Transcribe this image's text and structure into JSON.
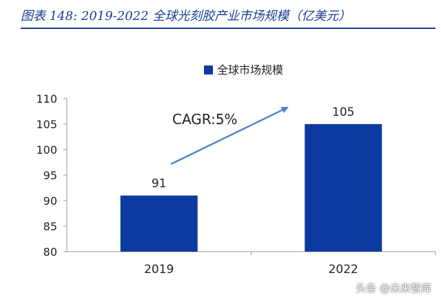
{
  "header": {
    "figure_title": "图表 148:  2019-2022 全球光刻胶产业市场规模（亿美元）"
  },
  "colors": {
    "title": "#1a3f8f",
    "bar": "#0d3aa0",
    "arrow": "#4f86c6",
    "axis": "#9a9a9a",
    "text": "#222222"
  },
  "chart_data": {
    "type": "bar",
    "categories": [
      "2019",
      "2022"
    ],
    "series": [
      {
        "name": "全球市场规模",
        "values": [
          91,
          105
        ]
      }
    ],
    "data_labels": [
      "91",
      "105"
    ],
    "ylim": [
      80,
      110
    ],
    "yticks": [
      80,
      85,
      90,
      95,
      100,
      105,
      110
    ],
    "xlabel": "",
    "ylabel": "",
    "grid": false,
    "legend_position": "top-center",
    "annotation": {
      "text": "CAGR:5%",
      "arrow": "up-right"
    }
  },
  "watermark": "头条 @未来智库"
}
